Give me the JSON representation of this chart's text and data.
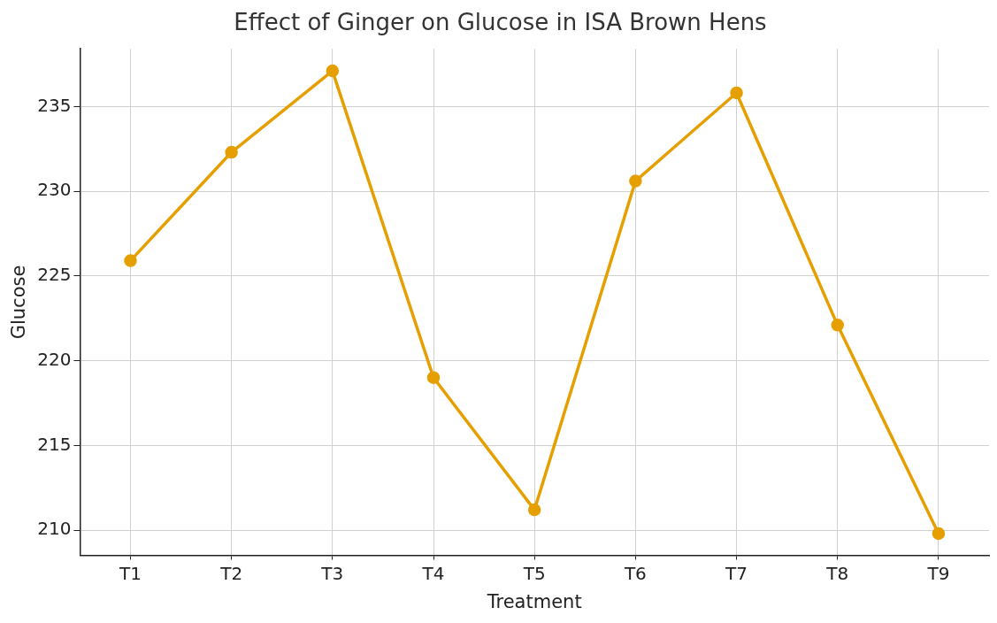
{
  "chart_data": {
    "type": "line",
    "title": "Effect of Ginger on Glucose in ISA Brown Hens",
    "xlabel": "Treatment",
    "ylabel": "Glucose",
    "categories": [
      "T1",
      "T2",
      "T3",
      "T4",
      "T5",
      "T6",
      "T7",
      "T8",
      "T9"
    ],
    "series": [
      {
        "color": "#e69f00",
        "values": [
          225.9,
          232.3,
          237.1,
          219.0,
          211.2,
          230.6,
          235.8,
          222.1,
          209.8
        ]
      }
    ],
    "ylim": [
      208.5,
      238.4
    ],
    "yticks": [
      210,
      215,
      220,
      225,
      230,
      235
    ],
    "grid": true,
    "marker": "circle",
    "line_style": "solid",
    "legend": false
  }
}
